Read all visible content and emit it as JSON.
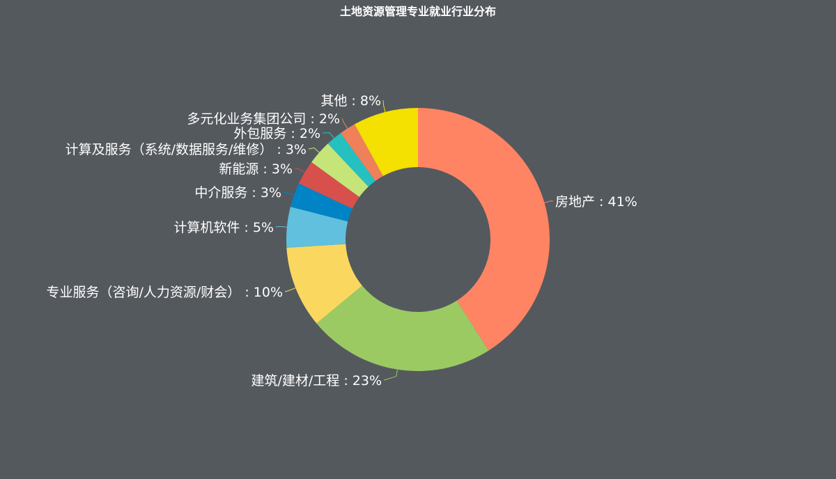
{
  "chart_data": {
    "type": "pie",
    "variant": "donut",
    "title": "土地资源管理专业就业行业分布",
    "label_separator": " : ",
    "categories": [
      "房地产",
      "建筑/建材/工程",
      "专业服务（咨询/人力资源/财会）",
      "计算机软件",
      "中介服务",
      "新能源",
      "计算及服务（系统/数据服务/维修）",
      "外包服务",
      "多元化业务集团公司",
      "其他"
    ],
    "values": [
      41,
      23,
      10,
      5,
      3,
      3,
      3,
      2,
      2,
      8
    ],
    "unit": "%",
    "colors": [
      "#ff8463",
      "#9bca63",
      "#fad860",
      "#60c0dd",
      "#0084c6",
      "#d7504b",
      "#c6e579",
      "#26c0c0",
      "#f0805a",
      "#f4e001"
    ],
    "background": "#54595e",
    "legend": "none"
  }
}
